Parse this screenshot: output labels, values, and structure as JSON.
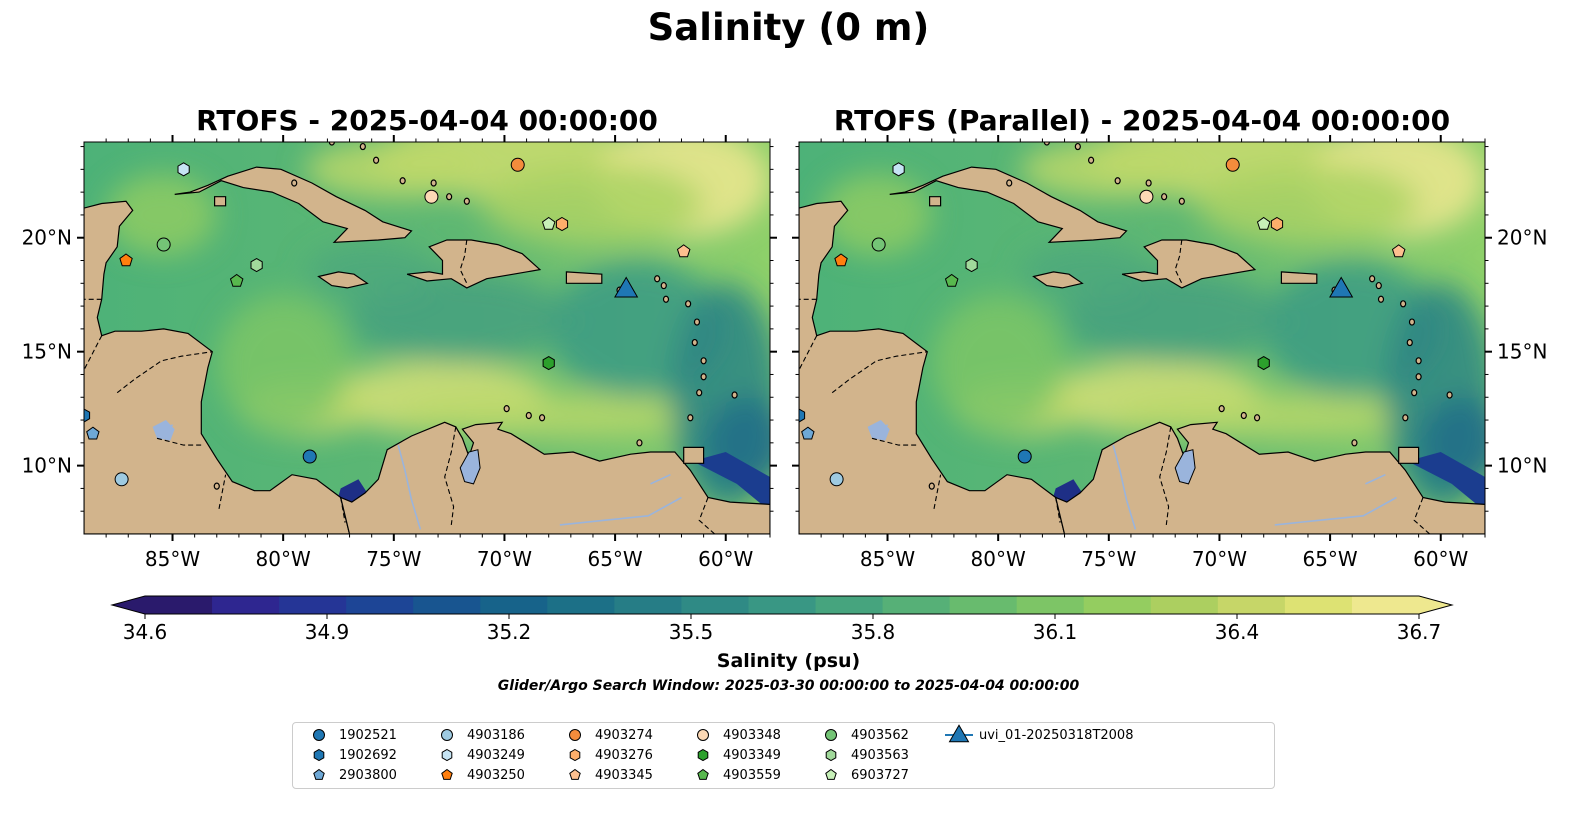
{
  "suptitle": "Salinity (0 m)",
  "panels": [
    {
      "title": "RTOFS - 2025-04-04 00:00:00",
      "lat_labels_side": "left"
    },
    {
      "title": "RTOFS (Parallel) - 2025-04-04 00:00:00",
      "lat_labels_side": "right"
    }
  ],
  "map_extent": {
    "lon": [
      -89,
      -58
    ],
    "lat": [
      7,
      24.2
    ]
  },
  "lon_ticks": [
    {
      "value": -85,
      "label": "85°W"
    },
    {
      "value": -80,
      "label": "80°W"
    },
    {
      "value": -75,
      "label": "75°W"
    },
    {
      "value": -70,
      "label": "70°W"
    },
    {
      "value": -65,
      "label": "65°W"
    },
    {
      "value": -60,
      "label": "60°W"
    }
  ],
  "lat_ticks": [
    {
      "value": 20,
      "label": "20°N"
    },
    {
      "value": 15,
      "label": "15°N"
    },
    {
      "value": 10,
      "label": "10°N"
    }
  ],
  "colorbar": {
    "min": 34.6,
    "max": 36.7,
    "extend": "both",
    "ticks": [
      "34.6",
      "34.9",
      "35.2",
      "35.5",
      "35.8",
      "36.1",
      "36.4",
      "36.7"
    ],
    "colors": [
      "#2a1a6c",
      "#2e2690",
      "#253596",
      "#1d4596",
      "#185590",
      "#17638a",
      "#1c7087",
      "#267d86",
      "#2f8a85",
      "#399784",
      "#46a47e",
      "#56b077",
      "#68bb6e",
      "#7dc566",
      "#94cd60",
      "#accf60",
      "#c6d668",
      "#dde273",
      "#eee88f"
    ],
    "label": "Salinity (psu)"
  },
  "search_window": "Glider/Argo Search Window: 2025-03-30 00:00:00 to 2025-04-04 00:00:00",
  "colors": {
    "land": "#d2b48c",
    "ocean_base": "#5fb673",
    "pacific": "#2a1a6c",
    "lakes": "#9ab4dc",
    "glider": "#1f77b4"
  },
  "legend": [
    {
      "label": "1902521",
      "marker": "circle",
      "color": "#1f77b4"
    },
    {
      "label": "1902692",
      "marker": "hexagon",
      "color": "#1f77b4"
    },
    {
      "label": "2903800",
      "marker": "pentagon",
      "color": "#6ea8d6"
    },
    {
      "label": "4903186",
      "marker": "circle",
      "color": "#9ecae1"
    },
    {
      "label": "4903249",
      "marker": "hexagon",
      "color": "#c6e4f4"
    },
    {
      "label": "4903250",
      "marker": "pentagon",
      "color": "#ff7f0e"
    },
    {
      "label": "4903274",
      "marker": "circle",
      "color": "#f48c3c"
    },
    {
      "label": "4903276",
      "marker": "hexagon",
      "color": "#fdae6b"
    },
    {
      "label": "4903345",
      "marker": "pentagon",
      "color": "#fdc08f"
    },
    {
      "label": "4903348",
      "marker": "circle",
      "color": "#fdd9b5"
    },
    {
      "label": "4903349",
      "marker": "hexagon",
      "color": "#2ca02c"
    },
    {
      "label": "4903559",
      "marker": "pentagon",
      "color": "#58b84e"
    },
    {
      "label": "4903562",
      "marker": "circle",
      "color": "#74c476"
    },
    {
      "label": "4903563",
      "marker": "hexagon",
      "color": "#a1d99b"
    },
    {
      "label": "6903727",
      "marker": "pentagon",
      "color": "#c7f0b8"
    },
    {
      "label": "uvi_01-20250318T2008",
      "marker": "triangle",
      "color": "#1f77b4"
    }
  ],
  "floats": [
    {
      "id": "1902521",
      "lon": -78.8,
      "lat": 10.4
    },
    {
      "id": "1902692",
      "lon": -89.0,
      "lat": 12.2
    },
    {
      "id": "2903800",
      "lon": -88.6,
      "lat": 11.4
    },
    {
      "id": "4903186",
      "lon": -87.3,
      "lat": 9.4
    },
    {
      "id": "4903249",
      "lon": -84.5,
      "lat": 23.0
    },
    {
      "id": "4903250",
      "lon": -87.1,
      "lat": 19.0
    },
    {
      "id": "4903274",
      "lon": -69.4,
      "lat": 23.2
    },
    {
      "id": "4903276",
      "lon": -67.4,
      "lat": 20.6
    },
    {
      "id": "4903345",
      "lon": -61.9,
      "lat": 19.4
    },
    {
      "id": "4903348",
      "lon": -73.3,
      "lat": 21.8
    },
    {
      "id": "4903349",
      "lon": -68.0,
      "lat": 14.5
    },
    {
      "id": "4903559",
      "lon": -82.1,
      "lat": 18.1
    },
    {
      "id": "4903562",
      "lon": -85.4,
      "lat": 19.7
    },
    {
      "id": "4903563",
      "lon": -81.2,
      "lat": 18.8
    },
    {
      "id": "6903727",
      "lon": -68.0,
      "lat": 20.6
    },
    {
      "id": "uvi_01-20250318T2008",
      "lon": -64.5,
      "lat": 17.8
    }
  ]
}
